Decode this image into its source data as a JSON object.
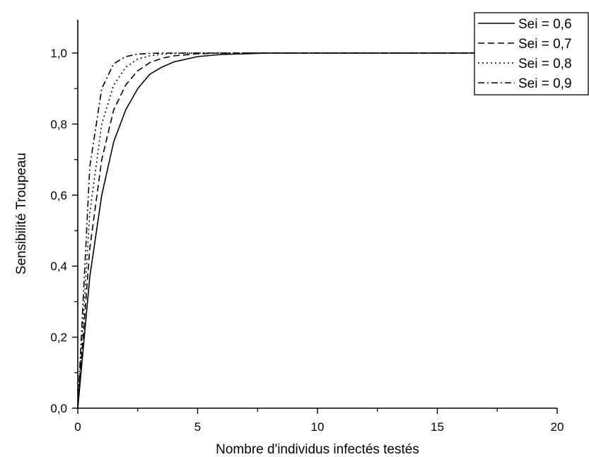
{
  "chart_data": {
    "type": "line",
    "title": "",
    "xlabel": "Nombre d'individus infectés testés",
    "ylabel": "Sensibilité Troupeau",
    "xlim": [
      0,
      20
    ],
    "ylim": [
      0,
      1
    ],
    "x_ticks": [
      0,
      5,
      10,
      15,
      20
    ],
    "x_tick_labels": [
      "0",
      "5",
      "10",
      "15",
      "20"
    ],
    "y_ticks": [
      0,
      0.2,
      0.4,
      0.6,
      0.8,
      1.0
    ],
    "y_tick_labels": [
      "0,0",
      "0,2",
      "0,4",
      "0,6",
      "0,8",
      "1,0"
    ],
    "grid": false,
    "legend_position": "top-right",
    "series": [
      {
        "name": "Sei = 0,6",
        "style": "solid",
        "sei": 0.6,
        "x": [
          0,
          0.5,
          1,
          1.5,
          2,
          2.5,
          3,
          3.5,
          4,
          5,
          6,
          8,
          20
        ],
        "y": [
          0,
          0.37,
          0.6,
          0.75,
          0.84,
          0.9,
          0.94,
          0.96,
          0.975,
          0.99,
          0.996,
          1.0,
          1.0
        ]
      },
      {
        "name": "Sei = 0,7",
        "style": "dashed",
        "sei": 0.7,
        "x": [
          0,
          0.5,
          1,
          1.5,
          2,
          2.5,
          3,
          3.5,
          4,
          5,
          6,
          8,
          20
        ],
        "y": [
          0,
          0.45,
          0.7,
          0.84,
          0.91,
          0.95,
          0.973,
          0.985,
          0.992,
          0.998,
          1.0,
          1.0,
          1.0
        ]
      },
      {
        "name": "Sei = 0,8",
        "style": "dotted",
        "sei": 0.8,
        "x": [
          0,
          0.5,
          1,
          1.5,
          2,
          2.5,
          3,
          3.5,
          4,
          5,
          6,
          8,
          20
        ],
        "y": [
          0,
          0.55,
          0.8,
          0.91,
          0.96,
          0.983,
          0.992,
          0.997,
          0.999,
          1.0,
          1.0,
          1.0,
          1.0
        ]
      },
      {
        "name": "Sei = 0,9",
        "style": "dashdot",
        "sei": 0.9,
        "x": [
          0,
          0.5,
          1,
          1.5,
          2,
          2.5,
          3,
          3.5,
          4,
          5,
          6,
          8,
          20
        ],
        "y": [
          0,
          0.68,
          0.9,
          0.97,
          0.99,
          0.997,
          0.999,
          1.0,
          1.0,
          1.0,
          1.0,
          1.0,
          1.0
        ]
      }
    ]
  }
}
